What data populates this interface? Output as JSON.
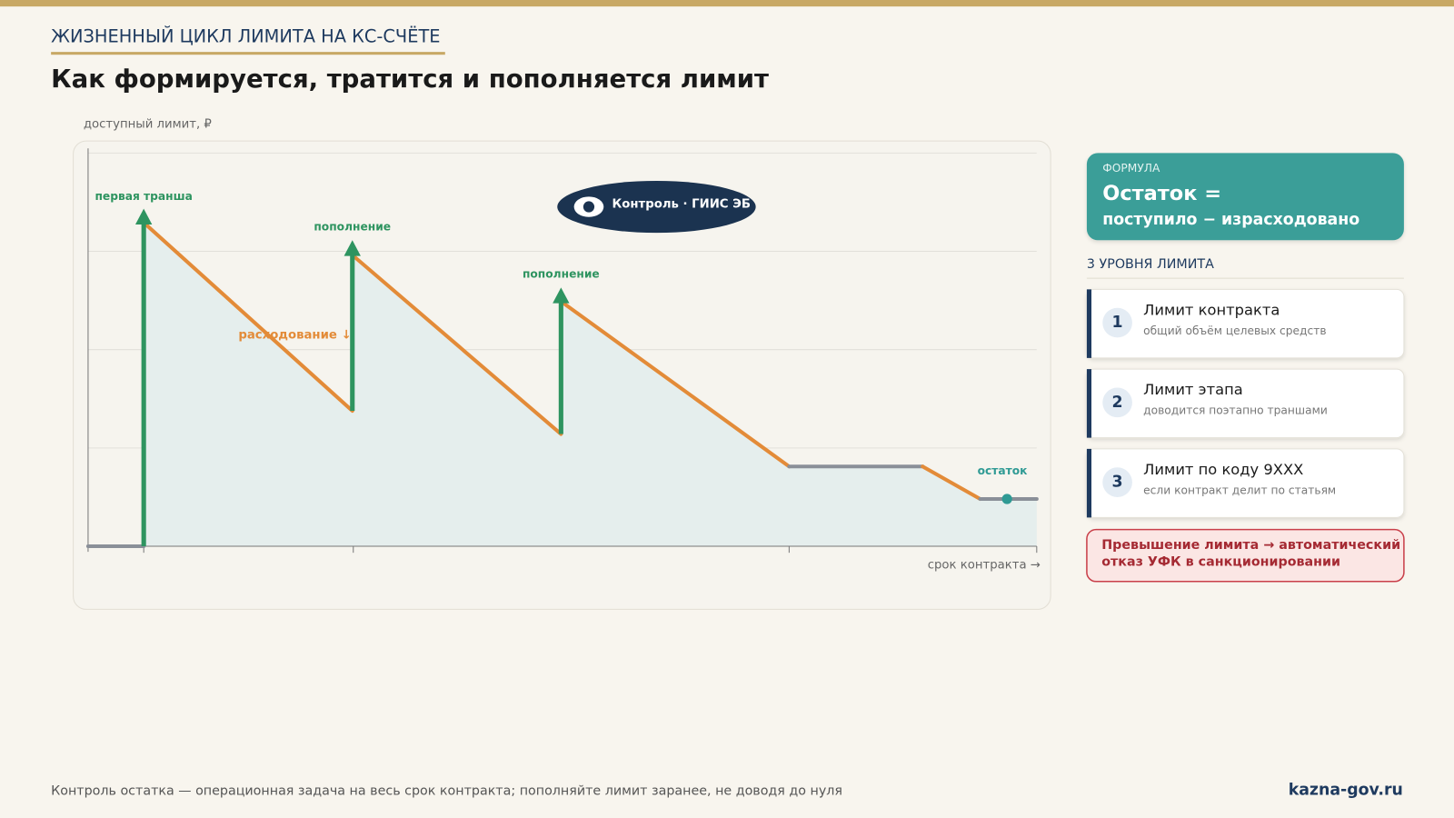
{
  "header": {
    "kicker": "ЖИЗНЕННЫЙ ЦИКЛ ЛИМИТА НА КС-СЧЁТЕ",
    "title": "Как формируется, тратится и пополняется лимит"
  },
  "chart": {
    "y_axis_label": "доступный лимит, ₽",
    "x_axis_label": "срок контракта →",
    "badge": "Контроль · ГИИС ЭБ",
    "annotations": {
      "first": "первая транша",
      "refill_1": "пополнение",
      "refill_2": "пополнение",
      "spending": "расходование ↓",
      "remainder": "остаток"
    }
  },
  "formula": {
    "label": "ФОРМУЛА",
    "line1": "Остаток =",
    "line2": "поступило − израсходовано"
  },
  "levels": {
    "title": "3 УРОВНЯ ЛИМИТА",
    "items": [
      {
        "number": "1",
        "title": "Лимит контракта",
        "description": "общий объём целевых средств"
      },
      {
        "number": "2",
        "title": "Лимит этапа",
        "description": "доводится поэтапно траншами"
      },
      {
        "number": "3",
        "title": "Лимит по коду 9ХХХ",
        "description": "если контракт делит по статьям"
      }
    ]
  },
  "warning": {
    "lines": [
      "Превышение лимита → автоматический",
      "отказ УФК в санкционировании"
    ]
  },
  "footer": {
    "note": "Контроль остатка — операционная задача на весь срок контракта; пополняйте лимит заранее, не доводя до нуля",
    "site": "kazna-gov.ru"
  }
}
